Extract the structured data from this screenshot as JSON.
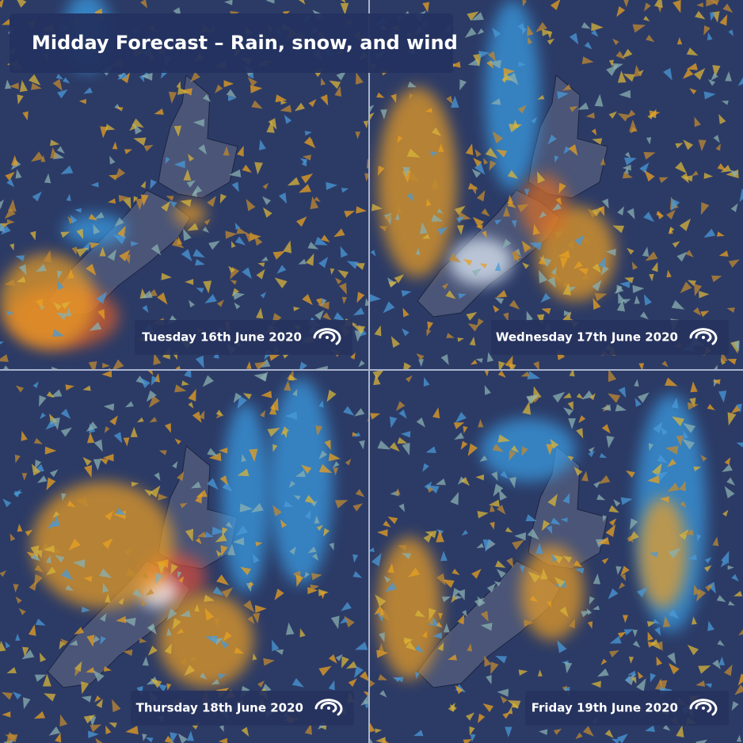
{
  "title": "Midday Forecast – Rain, snow, and wind",
  "panels": [
    {
      "date": "Tuesday 16th June 2020"
    },
    {
      "date": "Wednesday 17th June 2020"
    },
    {
      "date": "Thursday 18th June 2020"
    },
    {
      "date": "Friday 19th June 2020"
    }
  ]
}
